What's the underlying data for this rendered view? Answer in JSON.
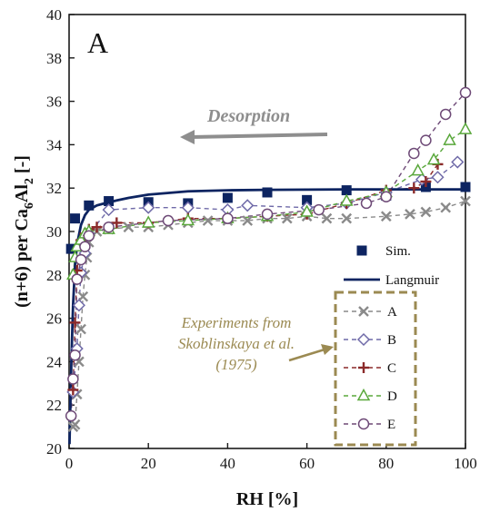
{
  "chart_data": {
    "type": "scatter",
    "panel_label": "A",
    "xlabel": "RH [%]",
    "ylabel_parts": {
      "pre": "(n+6) per Ca",
      "sub1": "6",
      "mid": "Al",
      "sub2": "2",
      "post": " [-]"
    },
    "xlim": [
      0,
      100
    ],
    "ylim": [
      20,
      40
    ],
    "x_ticks": [
      0,
      20,
      40,
      60,
      80,
      100
    ],
    "y_ticks": [
      20,
      22,
      24,
      26,
      28,
      30,
      32,
      34,
      36,
      38,
      40
    ],
    "grid": false,
    "annotations": {
      "arrow_label": "Desorption",
      "experiments_label": [
        "Experiments from",
        "Skoblinskaya et al.",
        "(1975)"
      ]
    },
    "colors": {
      "sim": "#0d2461",
      "langmuir": "#0d2461",
      "A": "#8a8a8a",
      "B": "#6f6aa8",
      "C": "#8b2a2a",
      "D": "#5aa83c",
      "E": "#6e4a77",
      "arrow": "#8e8e8e",
      "annotation": "#9b8a52"
    },
    "series": [
      {
        "name": "Sim.",
        "key": "sim",
        "style": "square",
        "x": [
          0.5,
          1.5,
          5,
          10,
          20,
          30,
          40,
          50,
          60,
          70,
          80,
          90,
          100
        ],
        "y": [
          29.2,
          30.6,
          31.2,
          31.4,
          31.35,
          31.3,
          31.55,
          31.8,
          31.45,
          31.9,
          31.65,
          32.05,
          32.05
        ]
      },
      {
        "name": "Langmuir",
        "key": "langmuir",
        "style": "line",
        "x": [
          0.1,
          0.3,
          0.6,
          1,
          1.5,
          2,
          3,
          4,
          5,
          7,
          10,
          15,
          20,
          30,
          40,
          50,
          60,
          70,
          80,
          90,
          100
        ],
        "y": [
          20.2,
          21.8,
          24.2,
          26.6,
          28.4,
          29.4,
          30.3,
          30.75,
          31.0,
          31.2,
          31.35,
          31.55,
          31.7,
          31.85,
          31.9,
          31.92,
          31.93,
          31.94,
          31.94,
          31.94,
          31.94
        ]
      },
      {
        "name": "A",
        "key": "A",
        "style": "x",
        "x": [
          1,
          1.5,
          2,
          2.5,
          3,
          3.5,
          4,
          4.5,
          5,
          7,
          10,
          15,
          20,
          25,
          30,
          35,
          40,
          45,
          50,
          55,
          60,
          65,
          70,
          80,
          86,
          90,
          95,
          100
        ],
        "y": [
          21.0,
          21.1,
          22.5,
          24.0,
          25.5,
          27.0,
          28.0,
          28.8,
          29.5,
          30.0,
          30.1,
          30.2,
          30.2,
          30.3,
          30.4,
          30.5,
          30.5,
          30.5,
          30.6,
          30.6,
          30.7,
          30.6,
          30.6,
          30.7,
          30.8,
          30.9,
          31.1,
          31.4
        ]
      },
      {
        "name": "B",
        "key": "B",
        "style": "diamond",
        "x": [
          1,
          2,
          2.5,
          3,
          4,
          5,
          10,
          20,
          30,
          40,
          45,
          60,
          70,
          80,
          89,
          93,
          98
        ],
        "y": [
          22.6,
          24.6,
          26.6,
          28.1,
          29.0,
          29.9,
          31.0,
          31.1,
          31.1,
          31.0,
          31.2,
          31.1,
          31.3,
          31.8,
          32.4,
          32.5,
          33.2
        ]
      },
      {
        "name": "C",
        "key": "C",
        "style": "plus",
        "x": [
          1,
          1.5,
          2,
          3,
          4,
          5,
          7,
          12,
          20,
          30,
          40,
          50,
          60,
          70,
          80,
          87,
          90,
          93
        ],
        "y": [
          22.7,
          25.8,
          28.2,
          29.6,
          29.9,
          30.1,
          30.2,
          30.4,
          30.4,
          30.6,
          30.6,
          30.7,
          30.8,
          31.3,
          31.9,
          32.0,
          32.3,
          33.1
        ]
      },
      {
        "name": "D",
        "key": "D",
        "style": "triangle",
        "x": [
          1,
          1.5,
          2,
          3,
          4,
          5,
          10,
          20,
          30,
          40,
          50,
          60,
          70,
          80,
          88,
          92,
          96,
          100
        ],
        "y": [
          28.0,
          28.8,
          29.3,
          29.6,
          29.9,
          30.0,
          30.1,
          30.4,
          30.5,
          30.6,
          30.7,
          30.9,
          31.4,
          31.8,
          32.8,
          33.3,
          34.2,
          34.7
        ]
      },
      {
        "name": "E",
        "key": "E",
        "style": "circle",
        "x": [
          0.5,
          1,
          1.5,
          2,
          3,
          4,
          5,
          10,
          25,
          40,
          50,
          63,
          75,
          80,
          87,
          90,
          95,
          100
        ],
        "y": [
          21.5,
          23.2,
          24.3,
          27.8,
          28.7,
          29.3,
          29.8,
          30.2,
          30.5,
          30.6,
          30.8,
          31.0,
          31.3,
          31.6,
          33.6,
          34.2,
          35.4,
          36.4
        ]
      }
    ]
  }
}
